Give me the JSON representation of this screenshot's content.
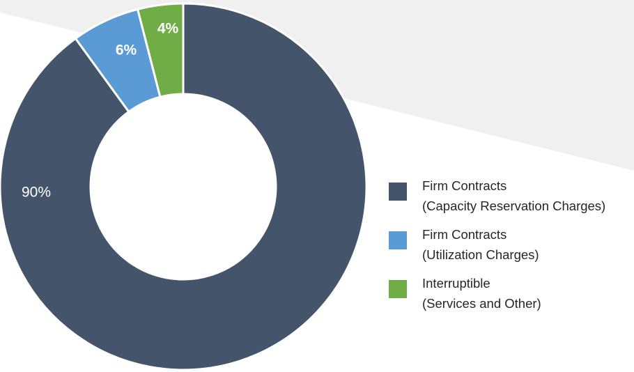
{
  "chart_data": {
    "type": "donut",
    "series": [
      {
        "name": "Firm Contracts\n(Capacity Reservation Charges)",
        "color": "#44546a",
        "values": [
          90
        ],
        "value_labels": [
          "90%"
        ]
      },
      {
        "name": "Firm Contracts\n(Utilization Charges)",
        "color": "#5b9bd5",
        "values": [
          6
        ],
        "value_labels": [
          "6%"
        ]
      },
      {
        "name": "Interruptible\n(Services and Other)",
        "color": "#70ad47",
        "values": [
          4
        ],
        "value_labels": [
          "4%"
        ]
      }
    ],
    "legend": "right"
  }
}
